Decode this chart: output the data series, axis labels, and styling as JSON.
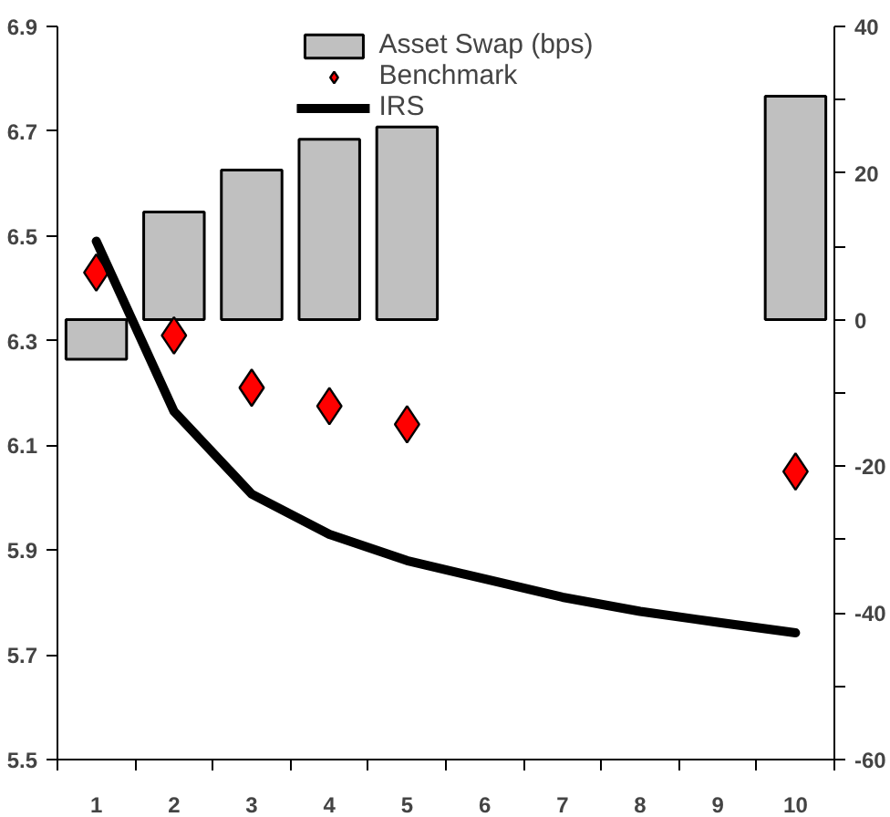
{
  "chart_data": {
    "type": "bar",
    "categories": [
      "1",
      "2",
      "3",
      "4",
      "5",
      "6",
      "7",
      "8",
      "9",
      "10"
    ],
    "series": [
      {
        "name": "Asset Swap (bps)",
        "axis": "y2",
        "color": "#c0c0c0",
        "values": [
          -5.4,
          14.7,
          20.4,
          24.6,
          26.3,
          null,
          null,
          null,
          null,
          30.5
        ]
      },
      {
        "name": "Benchmark",
        "type": "scatter",
        "marker": "diamond",
        "color": "#ff0000",
        "values": [
          6.43,
          6.31,
          6.21,
          6.175,
          6.14,
          null,
          null,
          null,
          null,
          6.05
        ]
      },
      {
        "name": "IRS",
        "type": "line",
        "color": "#000000",
        "values": [
          6.49,
          6.165,
          6.007,
          5.93,
          5.88,
          5.845,
          5.81,
          5.783,
          5.762,
          5.742
        ]
      }
    ],
    "ylim": [
      5.5,
      6.9
    ],
    "yticks": [
      5.5,
      5.7,
      5.9,
      6.1,
      6.3,
      6.5,
      6.7,
      6.9
    ],
    "y2lim": [
      -60,
      40
    ],
    "y2ticks": [
      -60,
      {
        "value": -50,
        "label": null
      },
      -40,
      {
        "value": -30,
        "label": null
      },
      -20,
      {
        "value": -10,
        "label": null
      },
      0,
      {
        "value": 10,
        "label": null
      },
      20,
      {
        "value": 30,
        "label": null
      },
      40
    ],
    "legend": "top",
    "grid": false
  }
}
